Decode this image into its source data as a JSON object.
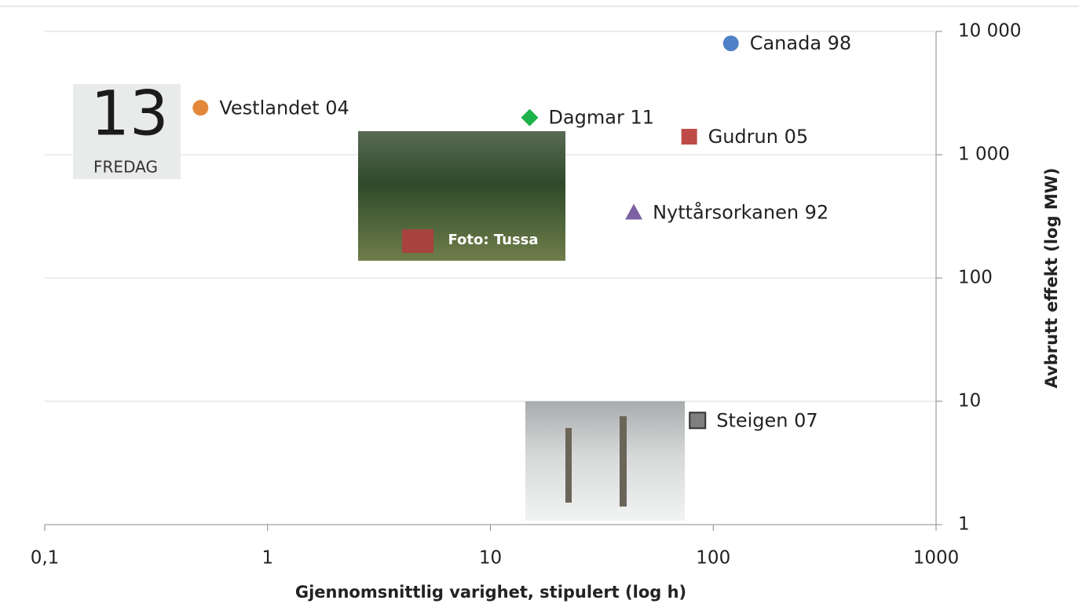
{
  "chart_data": {
    "type": "scatter",
    "x_label": "Gjennomsnittlig varighet, stipulert (log h)",
    "y_label": "Avbrutt effekt (log MW)",
    "xscale": "log",
    "yscale": "log",
    "grid": true,
    "xlim": [
      0.1,
      1000
    ],
    "xticks": [
      {
        "value": 0.1,
        "label": "0,1"
      },
      1,
      10,
      100,
      1000
    ],
    "ylim": [
      1,
      10000
    ],
    "yticks": [
      1,
      10,
      100,
      {
        "value": 1000,
        "label": "1 000"
      },
      {
        "value": 10000,
        "label": "10 000"
      }
    ],
    "series": [
      {
        "name": "Canada 98",
        "color": "#4f81c7",
        "marker": "circle",
        "x": [
          120
        ],
        "values": [
          8000
        ]
      },
      {
        "name": "Vestlandet 04",
        "color": "#e3883a",
        "marker": "circle",
        "x": [
          0.5
        ],
        "values": [
          2400
        ]
      },
      {
        "name": "Dagmar 11",
        "color": "#1db34a",
        "marker": "diamond",
        "x": [
          15
        ],
        "values": [
          2000
        ]
      },
      {
        "name": "Gudrun 05",
        "color": "#be4b48",
        "marker": "square",
        "x": [
          78
        ],
        "values": [
          1400
        ]
      },
      {
        "name": "Nyttårsorkanen  92",
        "color": "#7c62a2",
        "marker": "triangle",
        "x": [
          44
        ],
        "values": [
          340
        ]
      },
      {
        "name": "Steigen 07",
        "color": "#7f7f7f",
        "marker": "square-outline",
        "x": [
          85
        ],
        "values": [
          7
        ]
      }
    ],
    "annotations": [
      "13",
      "FREDAG",
      "Foto: Tussa"
    ]
  }
}
